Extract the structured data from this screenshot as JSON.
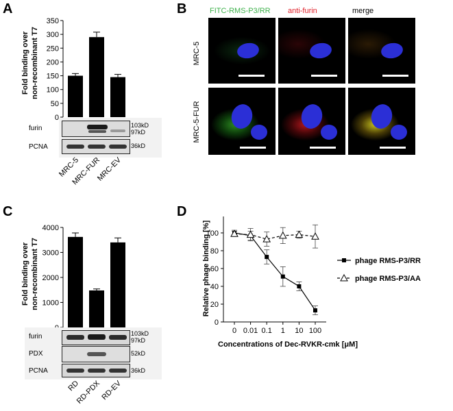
{
  "panelA": {
    "letter": "A",
    "ylabel1": "Fold binding over",
    "ylabel2": "non-recombinant T7",
    "chart_data": {
      "type": "bar",
      "categories": [
        "MRC-5",
        "MRC-FUR",
        "MRC-EV"
      ],
      "values": [
        150,
        290,
        145
      ],
      "errors": [
        8,
        18,
        10
      ],
      "ylim": [
        0,
        350
      ],
      "yticks": [
        "0",
        "50",
        "100",
        "150",
        "200",
        "250",
        "300",
        "350"
      ],
      "colors": {
        "bar": "#000000"
      }
    },
    "blot": {
      "rows": [
        "furin",
        "PCNA"
      ],
      "markers": [
        "103kD",
        "97kD",
        "36kD"
      ]
    }
  },
  "panelB": {
    "letter": "B",
    "columns": [
      "FITC-RMS-P3/RR",
      "anti-furin",
      "merge"
    ],
    "column_colors": [
      "#3cb04a",
      "#e0202a",
      "#333333"
    ],
    "rows": [
      "MRC-5",
      "MRC-5-FUR"
    ]
  },
  "panelC": {
    "letter": "C",
    "ylabel1": "Fold binding over",
    "ylabel2": "non-recombinant T7",
    "chart_data": {
      "type": "bar",
      "categories": [
        "RD",
        "RD-PDX",
        "RD-EV"
      ],
      "values": [
        3620,
        1480,
        3400
      ],
      "errors": [
        160,
        60,
        180
      ],
      "ylim": [
        0,
        4000
      ],
      "yticks": [
        "0",
        "1000",
        "2000",
        "3000",
        "4000"
      ],
      "colors": {
        "bar": "#000000"
      }
    },
    "blot": {
      "rows": [
        "furin",
        "PDX",
        "PCNA"
      ],
      "markers": [
        "103kD",
        "97kD",
        "52kD",
        "36kD"
      ]
    }
  },
  "panelD": {
    "letter": "D",
    "chart_data": {
      "type": "line",
      "x": [
        "0",
        "0.01",
        "0.1",
        "1",
        "10",
        "100"
      ],
      "series": [
        {
          "name": "phage RMS-P3/RR",
          "values": [
            100,
            97,
            73,
            51,
            40,
            13
          ],
          "errors": [
            3,
            5,
            8,
            11,
            5,
            5
          ]
        },
        {
          "name": "phage RMS-P3/AA",
          "values": [
            99,
            98,
            93,
            97,
            98,
            96
          ],
          "errors": [
            3,
            7,
            8,
            9,
            4,
            13
          ]
        }
      ],
      "xlabel_prefix": "Concentrations of Dec-RVKR-cmk [",
      "xlabel_unit": "μM",
      "xlabel_suffix": "]",
      "ylabel": "Relative phage binding [%]",
      "ylim": [
        0,
        100
      ],
      "yticks": [
        "0",
        "20",
        "40",
        "60",
        "80",
        "100"
      ],
      "legend_position": "right"
    }
  }
}
